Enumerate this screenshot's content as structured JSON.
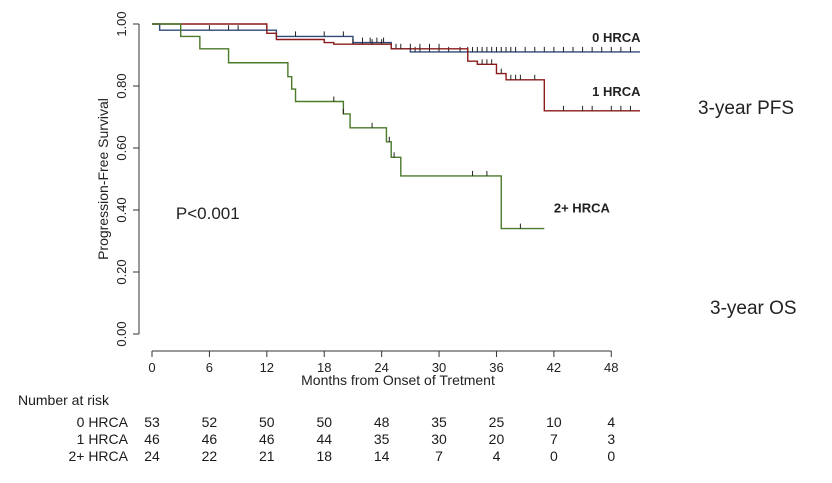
{
  "chart_data": {
    "type": "line",
    "ylabel": "Progression-Free Survival",
    "xlabel": "Months from Onset of Tretment",
    "xlim": [
      0,
      51
    ],
    "ylim": [
      0,
      1
    ],
    "x_ticks": [
      0,
      6,
      12,
      18,
      24,
      30,
      36,
      42,
      48
    ],
    "x_tick_labels": [
      "0",
      "6",
      "12",
      "18",
      "24",
      "30",
      "36",
      "42",
      "48"
    ],
    "y_ticks": [
      0,
      0.2,
      0.4,
      0.6,
      0.8,
      1.0
    ],
    "y_tick_labels": [
      "0.00",
      "0.20",
      "0.40",
      "0.60",
      "0.80",
      "1.00"
    ],
    "series": [
      {
        "name": "0 HRCA",
        "color": "#2f4a78",
        "end_x": 51,
        "steps": [
          [
            0,
            1.0
          ],
          [
            0.8,
            0.98
          ],
          [
            10,
            0.98
          ],
          [
            13,
            0.96
          ],
          [
            21,
            0.94
          ],
          [
            25,
            0.92
          ],
          [
            27,
            0.91
          ]
        ],
        "censors": [
          6,
          8,
          9,
          12,
          15,
          18,
          20,
          22,
          22.8,
          23.5,
          24.2,
          25.5,
          27.5,
          28,
          29,
          30,
          31,
          32.2,
          33,
          33.5,
          34,
          34.5,
          35,
          35.5,
          36,
          36.5,
          37,
          37.5,
          38,
          39,
          40,
          41,
          42,
          43,
          44,
          45,
          46,
          47,
          48,
          49,
          50
        ]
      },
      {
        "name": "1 HRCA",
        "color": "#8b1a1a",
        "end_x": 51,
        "steps": [
          [
            0,
            1.0
          ],
          [
            12,
            0.97
          ],
          [
            13,
            0.95
          ],
          [
            18,
            0.94
          ],
          [
            19,
            0.935
          ],
          [
            25,
            0.92
          ],
          [
            33,
            0.88
          ],
          [
            34,
            0.87
          ],
          [
            36,
            0.84
          ],
          [
            37,
            0.82
          ],
          [
            41,
            0.72
          ]
        ],
        "censors": [
          21,
          22,
          23,
          24,
          26,
          27,
          28,
          29,
          30,
          34.5,
          35,
          35.5,
          36.5,
          37.5,
          38,
          38.5,
          40,
          43,
          45,
          46,
          48,
          49,
          50
        ]
      },
      {
        "name": "2+ HRCA",
        "color": "#4a7a2a",
        "end_x": 41,
        "steps": [
          [
            0,
            1.0
          ],
          [
            3,
            0.96
          ],
          [
            5,
            0.92
          ],
          [
            8,
            0.875
          ],
          [
            14.2,
            0.83
          ],
          [
            14.6,
            0.79
          ],
          [
            15,
            0.75
          ],
          [
            20,
            0.71
          ],
          [
            20.7,
            0.665
          ],
          [
            24.5,
            0.62
          ],
          [
            25,
            0.57
          ],
          [
            26,
            0.51
          ],
          [
            36.5,
            0.34
          ]
        ],
        "censors": [
          19,
          20,
          23,
          24.8,
          25.3,
          33.5,
          35,
          38.5
        ]
      }
    ],
    "annotations": [
      {
        "text": "0 HRCA",
        "x": 46,
        "y": 0.955
      },
      {
        "text": "1 HRCA",
        "x": 46,
        "y": 0.78
      },
      {
        "text": "2+ HRCA",
        "x": 42,
        "y": 0.405
      },
      {
        "text": "P<0.001",
        "x": 2.5,
        "y": 0.385
      }
    ]
  },
  "side_labels": {
    "pfs": "3-year PFS",
    "os": "3-year OS"
  },
  "risk_table": {
    "title": "Number at risk",
    "columns": [
      0,
      6,
      12,
      18,
      24,
      30,
      36,
      42,
      48
    ],
    "rows": [
      {
        "label": "0 HRCA",
        "values": [
          "53",
          "52",
          "50",
          "50",
          "48",
          "35",
          "25",
          "10",
          "4"
        ]
      },
      {
        "label": "1 HRCA",
        "values": [
          "46",
          "46",
          "46",
          "44",
          "35",
          "30",
          "20",
          "7",
          "3"
        ]
      },
      {
        "label": "2+ HRCA",
        "values": [
          "24",
          "22",
          "21",
          "18",
          "14",
          "7",
          "4",
          "0",
          "0"
        ]
      }
    ]
  }
}
